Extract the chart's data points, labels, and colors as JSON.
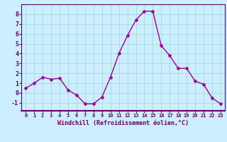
{
  "x": [
    0,
    1,
    2,
    3,
    4,
    5,
    6,
    7,
    8,
    9,
    10,
    11,
    12,
    13,
    14,
    15,
    16,
    17,
    18,
    19,
    20,
    21,
    22,
    23
  ],
  "y": [
    0.5,
    1.0,
    1.6,
    1.4,
    1.5,
    0.3,
    -0.2,
    -1.1,
    -1.1,
    -0.4,
    1.6,
    4.0,
    5.8,
    7.4,
    8.3,
    8.3,
    4.8,
    3.8,
    2.5,
    2.5,
    1.2,
    0.9,
    -0.5,
    -1.1
  ],
  "line_color": "#990099",
  "marker": "D",
  "marker_size": 2,
  "bg_color": "#cceeff",
  "grid_color": "#aadddd",
  "xlabel": "Windchill (Refroidissement éolien,°C)",
  "xlim": [
    -0.5,
    23.5
  ],
  "ylim": [
    -1.8,
    9.0
  ],
  "yticks": [
    -1,
    0,
    1,
    2,
    3,
    4,
    5,
    6,
    7,
    8
  ],
  "xticks": [
    0,
    1,
    2,
    3,
    4,
    5,
    6,
    7,
    8,
    9,
    10,
    11,
    12,
    13,
    14,
    15,
    16,
    17,
    18,
    19,
    20,
    21,
    22,
    23
  ],
  "axis_color": "#660066",
  "tick_color": "#660066",
  "label_color": "#660066",
  "spine_color": "#660066"
}
